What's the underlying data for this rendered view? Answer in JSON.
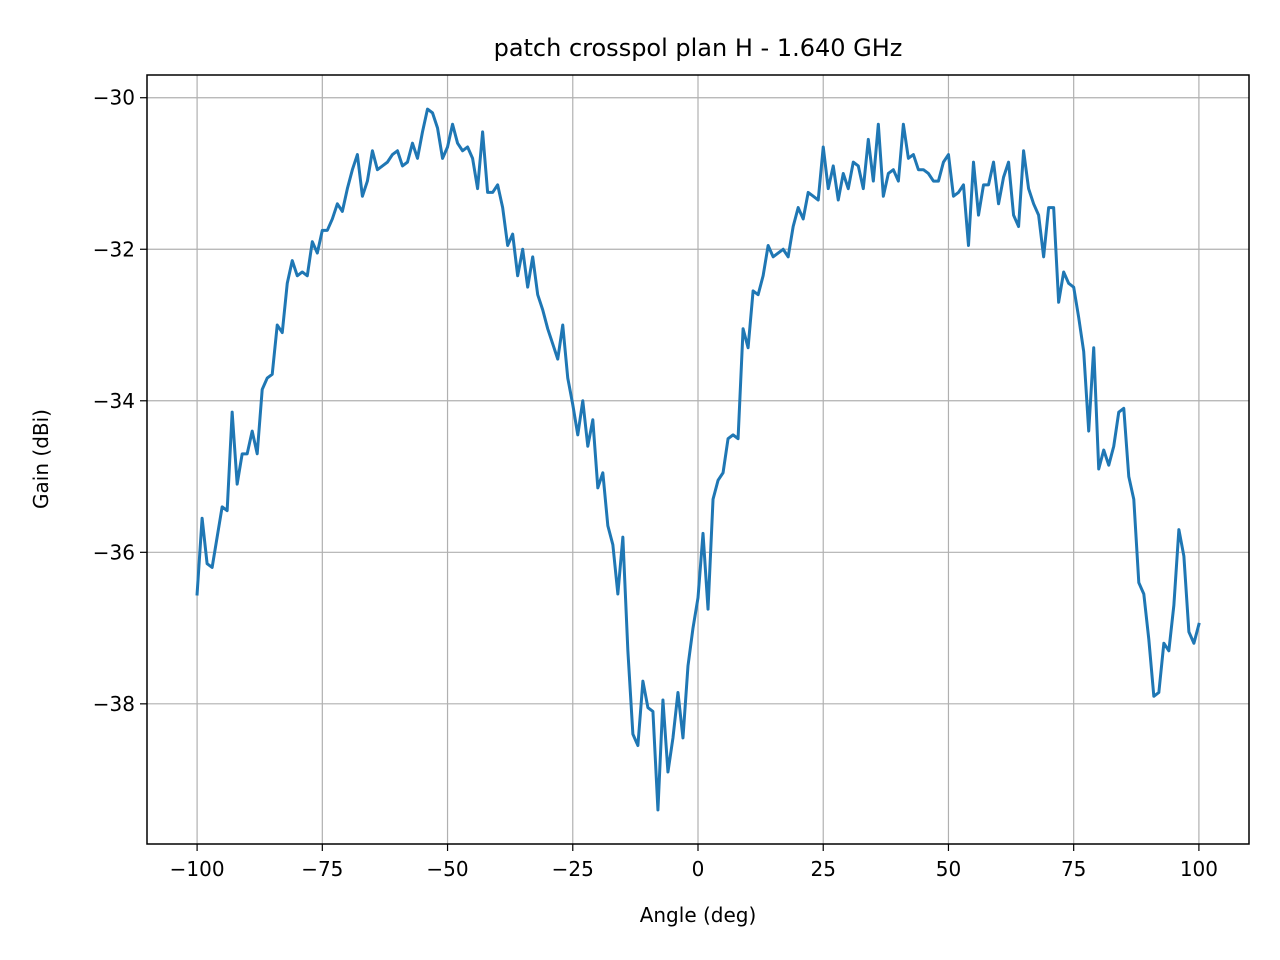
{
  "chart_data": {
    "type": "line",
    "title": "patch crosspol plan H - 1.640 GHz",
    "xlabel": "Angle (deg)",
    "ylabel": "Gain (dBi)",
    "xlim": [
      -110,
      110
    ],
    "ylim": [
      -39.85,
      -29.7
    ],
    "xticks": [
      -100,
      -75,
      -50,
      -25,
      0,
      25,
      50,
      75,
      100
    ],
    "xtick_labels": [
      "−100",
      "−75",
      "−50",
      "−25",
      "0",
      "25",
      "50",
      "75",
      "100"
    ],
    "yticks": [
      -30,
      -32,
      -34,
      -36,
      -38
    ],
    "ytick_labels": [
      "−30",
      "−32",
      "−34",
      "−36",
      "−38"
    ],
    "grid": true,
    "line_color": "#1f77b4",
    "series": [
      {
        "x": [
          -100,
          -99,
          -98,
          -97,
          -96,
          -95,
          -94,
          -93,
          -92,
          -91,
          -90,
          -89,
          -88,
          -87,
          -86,
          -85,
          -84,
          -83,
          -82,
          -81,
          -80,
          -79,
          -78,
          -77,
          -76,
          -75,
          -74,
          -73,
          -72,
          -71,
          -70,
          -69,
          -68,
          -67,
          -66,
          -65,
          -64,
          -63,
          -62,
          -61,
          -60,
          -59,
          -58,
          -57,
          -56,
          -55,
          -54,
          -53,
          -52,
          -51,
          -50,
          -49,
          -48,
          -47,
          -46,
          -45,
          -44,
          -43,
          -42,
          -41,
          -40,
          -39,
          -38,
          -37,
          -36,
          -35,
          -34,
          -33,
          -32,
          -31,
          -30,
          -29,
          -28,
          -27,
          -26,
          -25,
          -24,
          -23,
          -22,
          -21,
          -20,
          -19,
          -18,
          -17,
          -16,
          -15,
          -14,
          -13,
          -12,
          -11,
          -10,
          -9,
          -8,
          -7,
          -6,
          -5,
          -4,
          -3,
          -2,
          -1,
          0,
          1,
          2,
          3,
          4,
          5,
          6,
          7,
          8,
          9,
          10,
          11,
          12,
          13,
          14,
          15,
          16,
          17,
          18,
          19,
          20,
          21,
          22,
          23,
          24,
          25,
          26,
          27,
          28,
          29,
          30,
          31,
          32,
          33,
          34,
          35,
          36,
          37,
          38,
          39,
          40,
          41,
          42,
          43,
          44,
          45,
          46,
          47,
          48,
          49,
          50,
          51,
          52,
          53,
          54,
          55,
          56,
          57,
          58,
          59,
          60,
          61,
          62,
          63,
          64,
          65,
          66,
          67,
          68,
          69,
          70,
          71,
          72,
          73,
          74,
          75,
          76,
          77,
          78,
          79,
          80,
          81,
          82,
          83,
          84,
          85,
          86,
          87,
          88,
          89,
          90,
          91,
          92,
          93,
          94,
          95,
          96,
          97,
          98,
          99,
          100
        ],
        "y": [
          -36.55,
          -35.55,
          -36.15,
          -36.2,
          -35.8,
          -35.4,
          -35.45,
          -34.15,
          -35.1,
          -34.7,
          -34.7,
          -34.4,
          -34.7,
          -33.85,
          -33.7,
          -33.65,
          -33.0,
          -33.1,
          -32.45,
          -32.15,
          -32.35,
          -32.3,
          -32.35,
          -31.9,
          -32.05,
          -31.75,
          -31.75,
          -31.6,
          -31.4,
          -31.5,
          -31.2,
          -30.95,
          -30.75,
          -31.3,
          -31.1,
          -30.7,
          -30.95,
          -30.9,
          -30.85,
          -30.75,
          -30.7,
          -30.9,
          -30.85,
          -30.6,
          -30.8,
          -30.45,
          -30.15,
          -30.2,
          -30.4,
          -30.8,
          -30.65,
          -30.35,
          -30.6,
          -30.7,
          -30.65,
          -30.8,
          -31.2,
          -30.45,
          -31.25,
          -31.25,
          -31.15,
          -31.45,
          -31.95,
          -31.8,
          -32.35,
          -32.0,
          -32.5,
          -32.1,
          -32.6,
          -32.8,
          -33.05,
          -33.25,
          -33.45,
          -33.0,
          -33.7,
          -34.05,
          -34.45,
          -34.0,
          -34.6,
          -34.25,
          -35.15,
          -34.95,
          -35.65,
          -35.9,
          -36.55,
          -35.8,
          -37.3,
          -38.4,
          -38.55,
          -37.7,
          -38.05,
          -38.1,
          -39.4,
          -37.95,
          -38.9,
          -38.45,
          -37.85,
          -38.45,
          -37.5,
          -37.0,
          -36.6,
          -35.75,
          -36.75,
          -35.3,
          -35.05,
          -34.95,
          -34.5,
          -34.45,
          -34.5,
          -33.05,
          -33.3,
          -32.55,
          -32.6,
          -32.35,
          -31.95,
          -32.1,
          -32.05,
          -32.0,
          -32.1,
          -31.7,
          -31.45,
          -31.6,
          -31.25,
          -31.3,
          -31.35,
          -30.65,
          -31.2,
          -30.9,
          -31.35,
          -31.0,
          -31.2,
          -30.85,
          -30.9,
          -31.2,
          -30.55,
          -31.1,
          -30.35,
          -31.3,
          -31.0,
          -30.95,
          -31.1,
          -30.35,
          -30.8,
          -30.75,
          -30.95,
          -30.95,
          -31.0,
          -31.1,
          -31.1,
          -30.85,
          -30.75,
          -31.3,
          -31.25,
          -31.15,
          -31.95,
          -30.85,
          -31.55,
          -31.15,
          -31.15,
          -30.85,
          -31.4,
          -31.05,
          -30.85,
          -31.55,
          -31.7,
          -30.7,
          -31.2,
          -31.4,
          -31.55,
          -32.1,
          -31.45,
          -31.45,
          -32.7,
          -32.3,
          -32.45,
          -32.5,
          -32.9,
          -33.35,
          -34.4,
          -33.3,
          -34.9,
          -34.65,
          -34.85,
          -34.6,
          -34.15,
          -34.1,
          -35.0,
          -35.3,
          -36.4,
          -36.55,
          -37.15,
          -37.9,
          -37.85,
          -37.2,
          -37.3,
          -36.7,
          -35.7,
          -36.05,
          -37.05,
          -37.2,
          -36.95
        ]
      }
    ]
  }
}
